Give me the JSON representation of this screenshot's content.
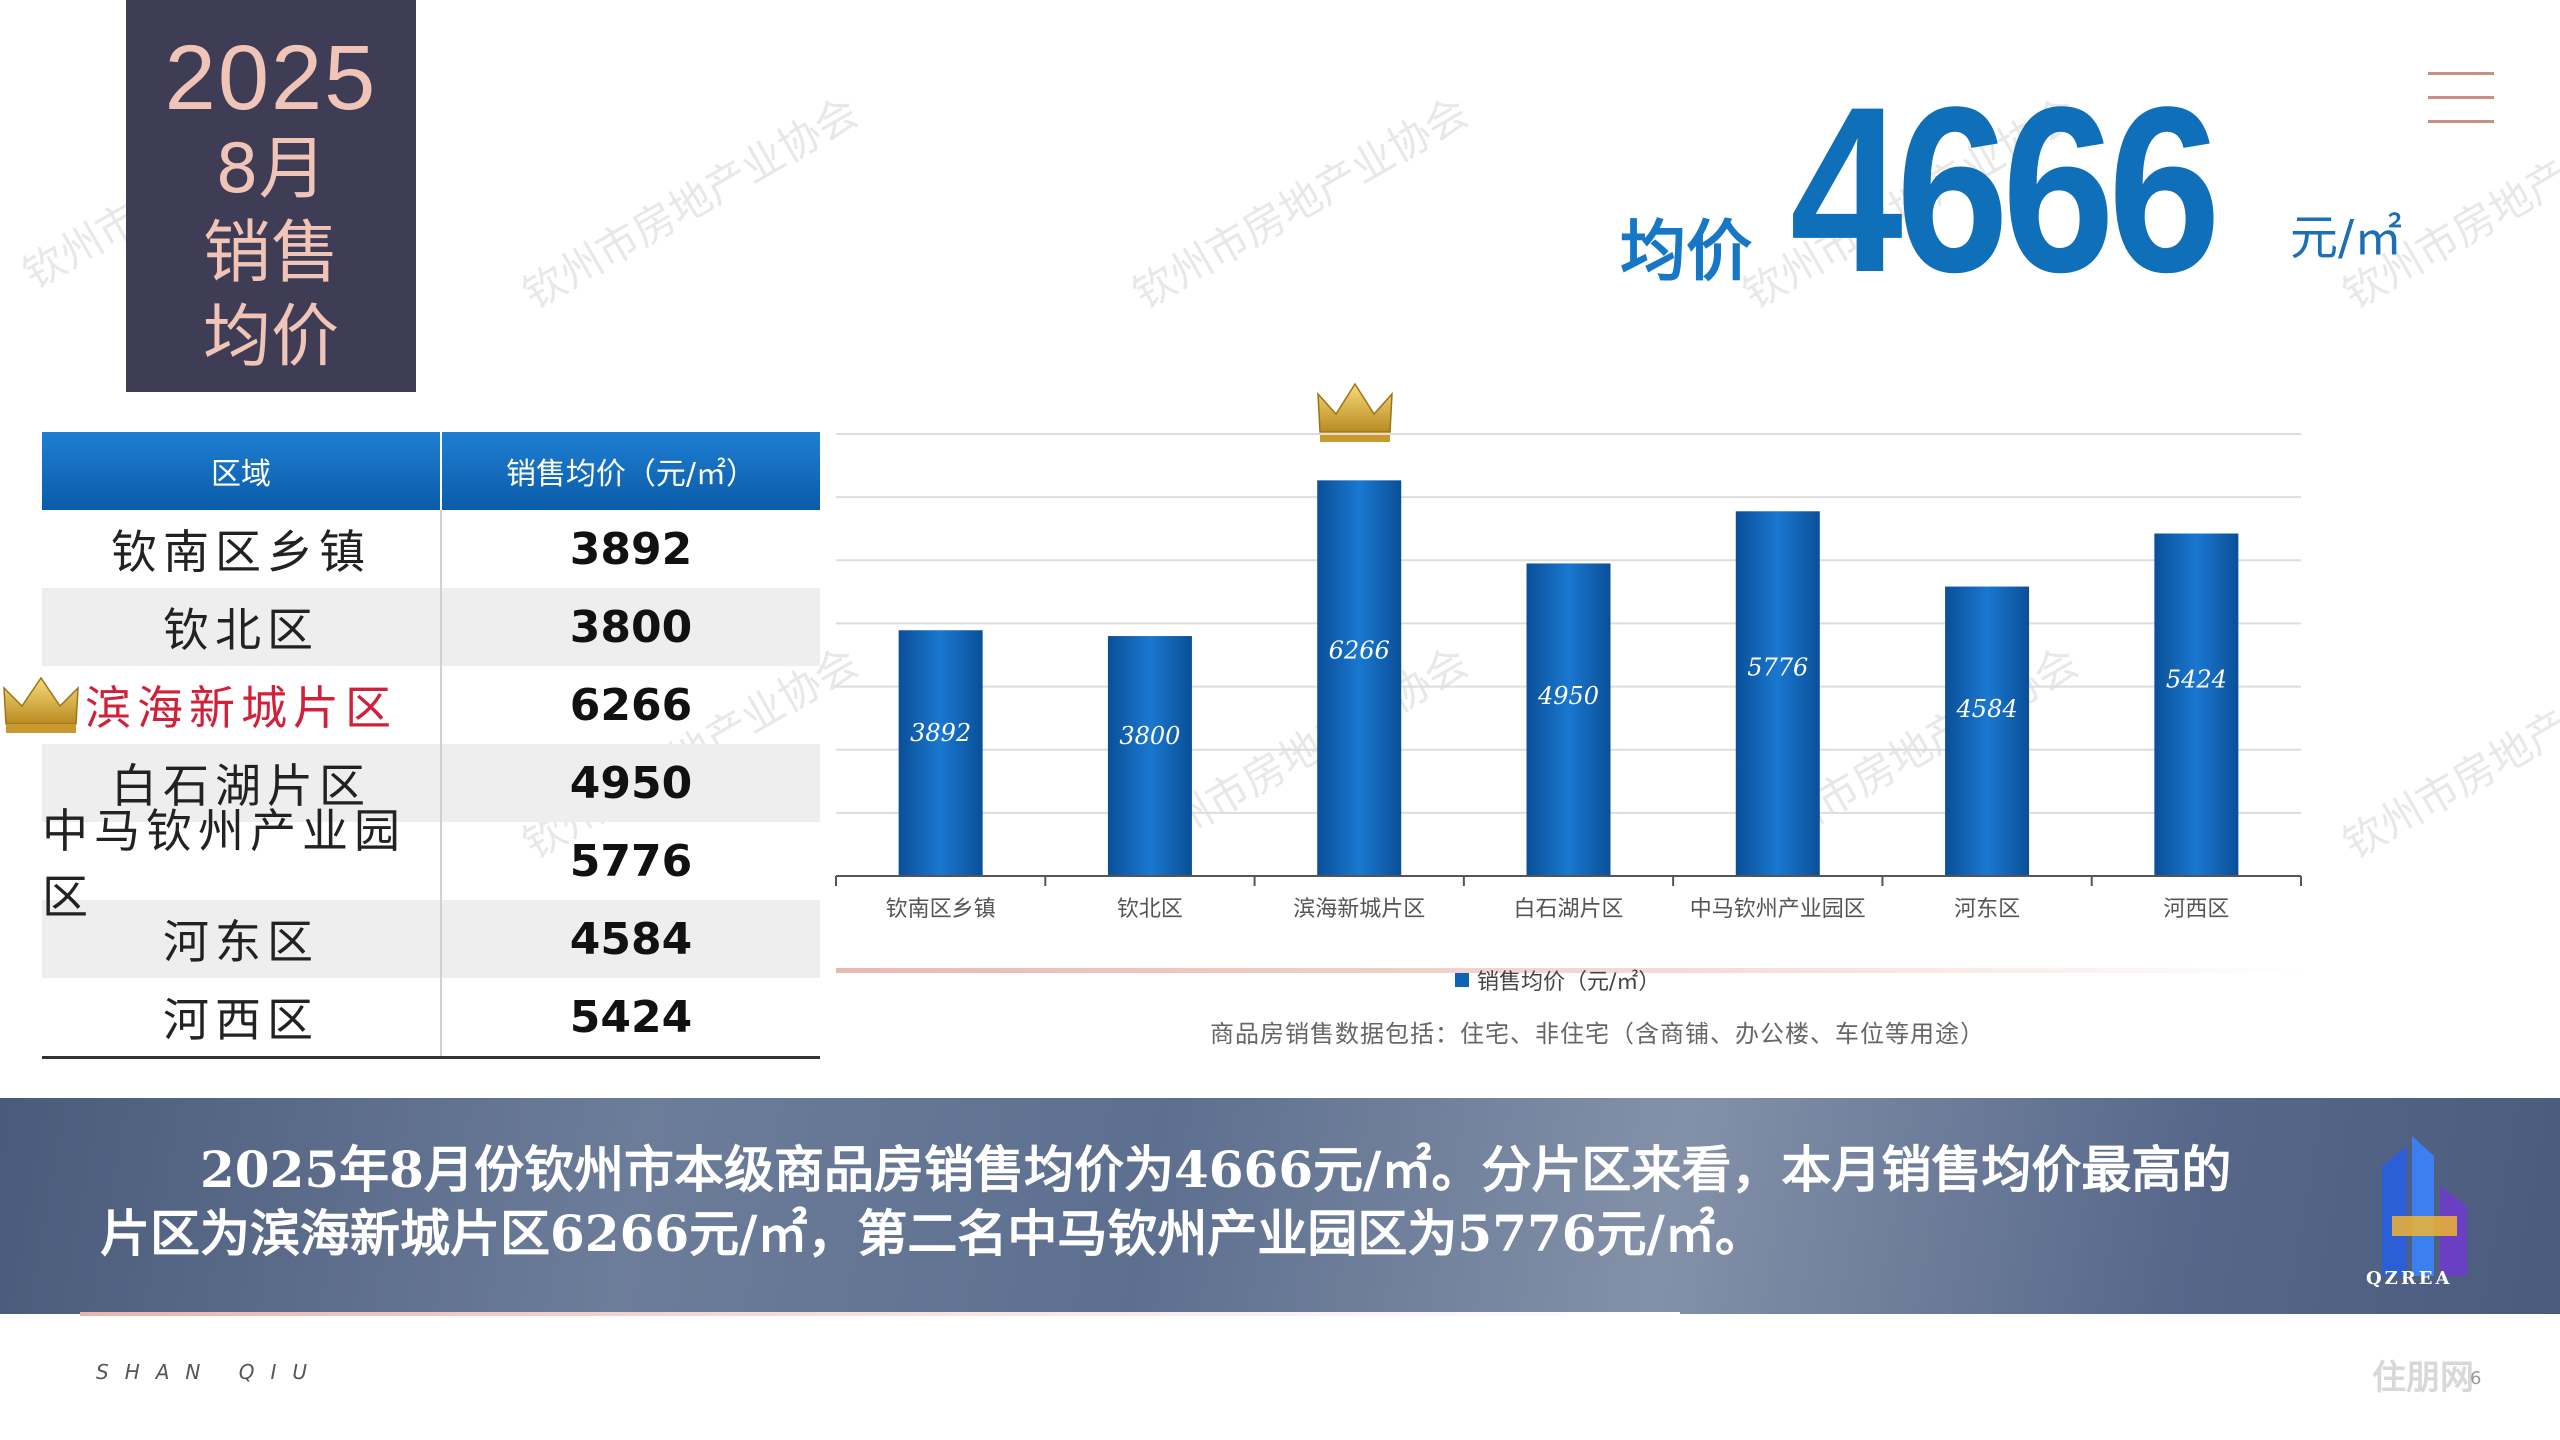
{
  "title": {
    "year": "2025",
    "month": "8月",
    "line1": "销售",
    "line2": "均价"
  },
  "headline": {
    "label": "均价",
    "value": "4666",
    "unit": "元/㎡"
  },
  "table": {
    "headers": [
      "区域",
      "销售均价（元/㎡）"
    ],
    "rows": [
      {
        "region": "钦南区乡镇",
        "price": "3892"
      },
      {
        "region": "钦北区",
        "price": "3800"
      },
      {
        "region": "滨海新城片区",
        "price": "6266"
      },
      {
        "region": "白石湖片区",
        "price": "4950"
      },
      {
        "region": "中马钦州产业园区",
        "price": "5776"
      },
      {
        "region": "河东区",
        "price": "4584"
      },
      {
        "region": "河西区",
        "price": "5424"
      }
    ]
  },
  "chart_data": {
    "type": "bar",
    "categories": [
      "钦南区乡镇",
      "钦北区",
      "滨海新城片区",
      "白石湖片区",
      "中马钦州产业园区",
      "河东区",
      "河西区"
    ],
    "series": [
      {
        "name": "销售均价（元/㎡）",
        "values": [
          3892,
          3800,
          6266,
          4950,
          5776,
          4584,
          5424
        ]
      }
    ],
    "ylim": [
      0,
      7000
    ],
    "grid": true,
    "legend": "bottom",
    "bar_color": "#0f62b4",
    "highlight_index": 2
  },
  "footnote": "商品房销售数据包括：住宅、非住宅（含商铺、办公楼、车位等用途）",
  "summary": {
    "line1": "2025年8月份钦州市本级商品房销售均价为4666元/㎡。分片区来看，本月销售均价最高的",
    "line2": "片区为滨海新城片区6266元/㎡，第二名中马钦州产业园区为5776元/㎡。"
  },
  "brand": {
    "logo_text": "QZREA",
    "footer_tag": "SHAN QIU",
    "corner_logo": "住朋网",
    "page_number": "6"
  },
  "watermark": "钦州市房地产业协会",
  "colors": {
    "title_bg": "#3e3d55",
    "title_text": "#f0c4b6",
    "accent_blue": "#0f6fb8",
    "highlight_red": "#d1203a"
  }
}
